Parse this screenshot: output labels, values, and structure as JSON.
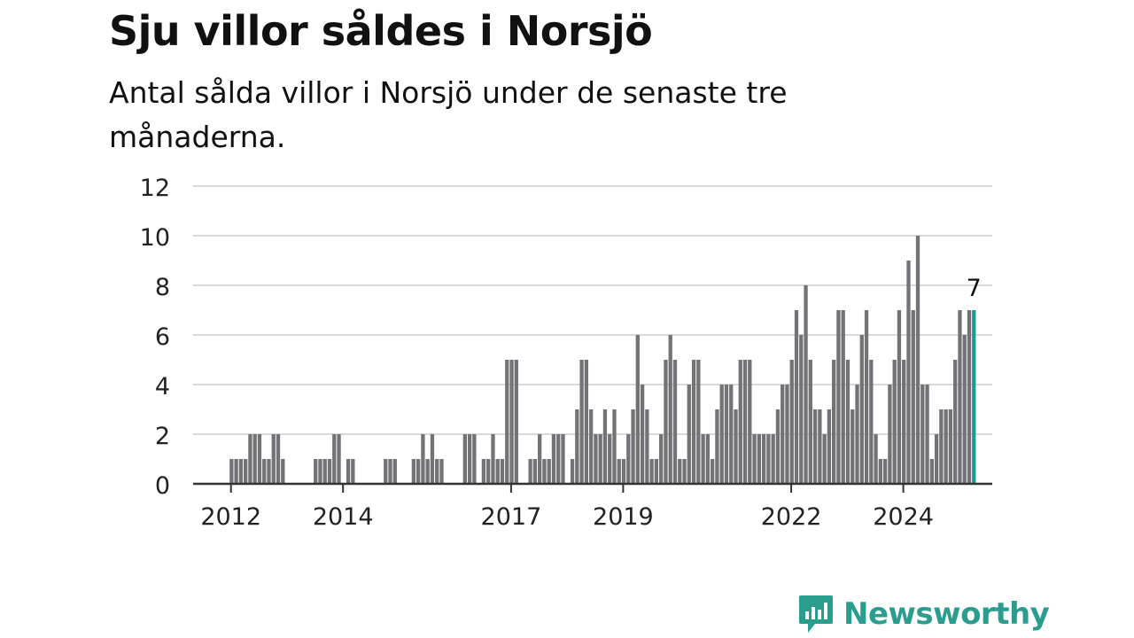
{
  "header": {
    "title": "Sju villor såldes i Norsjö",
    "subtitle": "Antal sålda villor i Norsjö under de senaste tre månaderna."
  },
  "brand": {
    "name": "Newsworthy",
    "logo_icon": "bar-chart-speech-bubble-icon"
  },
  "colors": {
    "bar": "#737276",
    "highlight": "#1a9a93",
    "grid": "#d9d9d9",
    "axis": "#333333",
    "brand": "#2a9d8f"
  },
  "chart_data": {
    "type": "bar",
    "title": "Sju villor såldes i Norsjö",
    "subtitle": "Antal sålda villor i Norsjö under de senaste tre månaderna.",
    "ylim": [
      0,
      12
    ],
    "yticks": [
      0,
      2,
      4,
      6,
      8,
      10,
      12
    ],
    "grid": true,
    "x_tick_labels": [
      "2012",
      "2014",
      "2017",
      "2019",
      "2022",
      "2024"
    ],
    "highlight": {
      "x": "2025-04",
      "value": 7,
      "label": "7"
    },
    "series": [
      {
        "x": [
          "2012-01",
          "2012-02",
          "2012-03",
          "2012-04",
          "2012-05",
          "2012-06",
          "2012-07",
          "2012-08",
          "2012-09",
          "2012-10",
          "2012-11",
          "2012-12",
          "2013-01",
          "2013-02",
          "2013-03",
          "2013-04",
          "2013-05",
          "2013-06",
          "2013-07",
          "2013-08",
          "2013-09",
          "2013-10",
          "2013-11",
          "2013-12",
          "2014-01",
          "2014-02",
          "2014-03",
          "2014-04",
          "2014-05",
          "2014-06",
          "2014-07",
          "2014-08",
          "2014-09",
          "2014-10",
          "2014-11",
          "2014-12",
          "2015-01",
          "2015-02",
          "2015-03",
          "2015-04",
          "2015-05",
          "2015-06",
          "2015-07",
          "2015-08",
          "2015-09",
          "2015-10",
          "2015-11",
          "2015-12",
          "2016-01",
          "2016-02",
          "2016-03",
          "2016-04",
          "2016-05",
          "2016-06",
          "2016-07",
          "2016-08",
          "2016-09",
          "2016-10",
          "2016-11",
          "2016-12",
          "2017-01",
          "2017-02",
          "2017-03",
          "2017-04",
          "2017-05",
          "2017-06",
          "2017-07",
          "2017-08",
          "2017-09",
          "2017-10",
          "2017-11",
          "2017-12",
          "2018-01",
          "2018-02",
          "2018-03",
          "2018-04",
          "2018-05",
          "2018-06",
          "2018-07",
          "2018-08",
          "2018-09",
          "2018-10",
          "2018-11",
          "2018-12",
          "2019-01",
          "2019-02",
          "2019-03",
          "2019-04",
          "2019-05",
          "2019-06",
          "2019-07",
          "2019-08",
          "2019-09",
          "2019-10",
          "2019-11",
          "2019-12",
          "2020-01",
          "2020-02",
          "2020-03",
          "2020-04",
          "2020-05",
          "2020-06",
          "2020-07",
          "2020-08",
          "2020-09",
          "2020-10",
          "2020-11",
          "2020-12",
          "2021-01",
          "2021-02",
          "2021-03",
          "2021-04",
          "2021-05",
          "2021-06",
          "2021-07",
          "2021-08",
          "2021-09",
          "2021-10",
          "2021-11",
          "2021-12",
          "2022-01",
          "2022-02",
          "2022-03",
          "2022-04",
          "2022-05",
          "2022-06",
          "2022-07",
          "2022-08",
          "2022-09",
          "2022-10",
          "2022-11",
          "2022-12",
          "2023-01",
          "2023-02",
          "2023-03",
          "2023-04",
          "2023-05",
          "2023-06",
          "2023-07",
          "2023-08",
          "2023-09",
          "2023-10",
          "2023-11",
          "2023-12",
          "2024-01",
          "2024-02",
          "2024-03",
          "2024-04",
          "2024-05",
          "2024-06",
          "2024-07",
          "2024-08",
          "2024-09",
          "2024-10",
          "2024-11",
          "2024-12",
          "2025-01",
          "2025-02",
          "2025-03",
          "2025-04"
        ],
        "values": [
          1,
          1,
          1,
          1,
          2,
          2,
          2,
          1,
          1,
          2,
          2,
          1,
          0,
          0,
          0,
          0,
          0,
          0,
          1,
          1,
          1,
          1,
          2,
          2,
          0,
          1,
          1,
          0,
          0,
          0,
          0,
          0,
          0,
          1,
          1,
          1,
          0,
          0,
          0,
          1,
          1,
          2,
          1,
          2,
          1,
          1,
          0,
          0,
          0,
          0,
          2,
          2,
          2,
          0,
          1,
          1,
          2,
          1,
          1,
          5,
          5,
          5,
          0,
          0,
          1,
          1,
          2,
          1,
          1,
          2,
          2,
          2,
          0,
          1,
          3,
          5,
          5,
          3,
          2,
          2,
          3,
          2,
          3,
          1,
          1,
          2,
          3,
          6,
          4,
          3,
          1,
          1,
          2,
          5,
          6,
          5,
          1,
          1,
          4,
          5,
          5,
          2,
          2,
          1,
          3,
          4,
          4,
          4,
          3,
          5,
          5,
          5,
          2,
          2,
          2,
          2,
          2,
          3,
          4,
          4,
          5,
          7,
          6,
          8,
          5,
          3,
          3,
          2,
          3,
          5,
          7,
          7,
          5,
          3,
          4,
          6,
          7,
          5,
          2,
          1,
          1,
          4,
          5,
          7,
          5,
          9,
          7,
          10,
          4,
          4,
          1,
          2,
          3,
          3,
          3,
          5,
          7,
          6,
          7,
          7
        ]
      }
    ]
  }
}
